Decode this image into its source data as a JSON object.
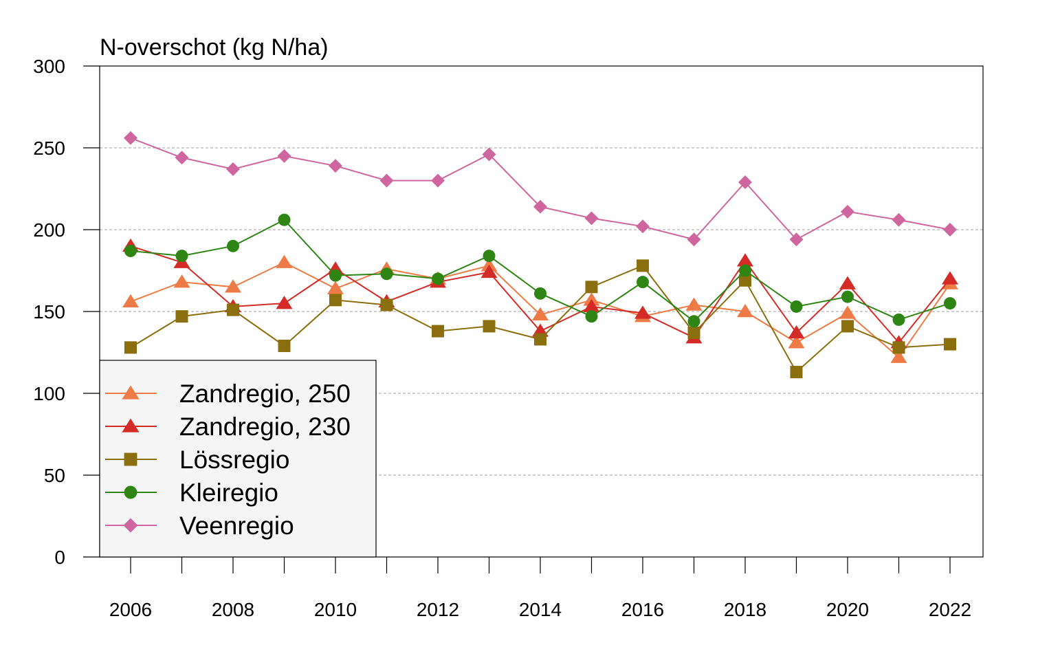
{
  "chart_data": {
    "type": "line",
    "title": "N-overschot (kg N/ha)",
    "xlabel": "",
    "ylabel": "",
    "x": [
      2006,
      2007,
      2008,
      2009,
      2010,
      2011,
      2012,
      2013,
      2014,
      2015,
      2016,
      2017,
      2018,
      2019,
      2020,
      2021,
      2022
    ],
    "x_tick_labels": [
      "2006",
      "2008",
      "2010",
      "2012",
      "2014",
      "2016",
      "2018",
      "2020",
      "2022"
    ],
    "y_tick_labels": [
      "0",
      "50",
      "100",
      "150",
      "200",
      "250",
      "300"
    ],
    "ylim": [
      0,
      300
    ],
    "grid": "horizontal dashed",
    "legend_position": "bottom-left",
    "series": [
      {
        "name": "Zandregio, 250",
        "color": "#ee7b45",
        "marker": "triangle",
        "values": [
          156,
          168,
          165,
          180,
          164,
          176,
          170,
          178,
          148,
          157,
          147,
          154,
          150,
          131,
          149,
          122,
          167
        ]
      },
      {
        "name": "Zandregio, 230",
        "color": "#d42b27",
        "marker": "triangle",
        "values": [
          190,
          180,
          153,
          155,
          176,
          156,
          168,
          174,
          138,
          153,
          149,
          134,
          181,
          137,
          167,
          131,
          170
        ]
      },
      {
        "name": "Lössregio",
        "color": "#8b6e0d",
        "marker": "square",
        "values": [
          128,
          147,
          151,
          129,
          157,
          154,
          138,
          141,
          133,
          165,
          178,
          137,
          169,
          113,
          141,
          128,
          130
        ]
      },
      {
        "name": "Kleiregio",
        "color": "#2e8514",
        "marker": "circle",
        "values": [
          187,
          184,
          190,
          206,
          172,
          173,
          170,
          184,
          161,
          147,
          168,
          144,
          175,
          153,
          159,
          145,
          155
        ]
      },
      {
        "name": "Veenregio",
        "color": "#d0669e",
        "marker": "diamond",
        "values": [
          256,
          244,
          237,
          245,
          239,
          230,
          230,
          246,
          214,
          207,
          202,
          194,
          229,
          194,
          211,
          206,
          200
        ]
      }
    ]
  }
}
